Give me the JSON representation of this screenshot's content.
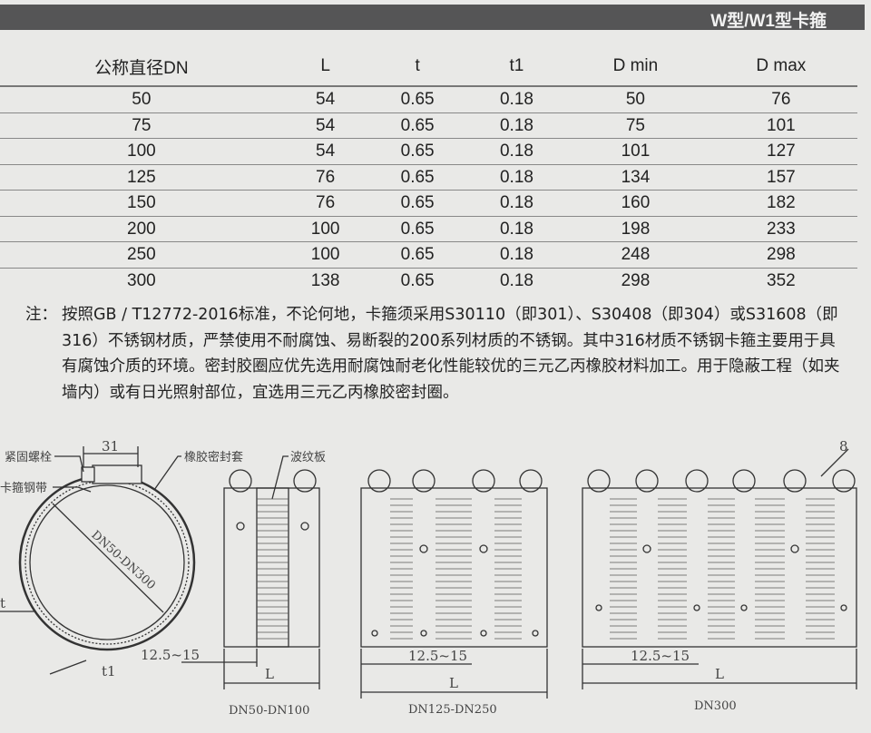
{
  "header": {
    "title": "W型/W1型卡箍"
  },
  "table": {
    "columns": [
      "公称直径DN",
      "L",
      "t",
      "t1",
      "D min",
      "D max"
    ],
    "rows": [
      [
        "50",
        "54",
        "0.65",
        "0.18",
        "50",
        "76"
      ],
      [
        "75",
        "54",
        "0.65",
        "0.18",
        "75",
        "101"
      ],
      [
        "100",
        "54",
        "0.65",
        "0.18",
        "101",
        "127"
      ],
      [
        "125",
        "76",
        "0.65",
        "0.18",
        "134",
        "157"
      ],
      [
        "150",
        "76",
        "0.65",
        "0.18",
        "160",
        "182"
      ],
      [
        "200",
        "100",
        "0.65",
        "0.18",
        "198",
        "233"
      ],
      [
        "250",
        "100",
        "0.65",
        "0.18",
        "248",
        "298"
      ],
      [
        "300",
        "138",
        "0.65",
        "0.18",
        "298",
        "352"
      ]
    ]
  },
  "note": {
    "label": "注：",
    "text": "按照GB / T12772-2016标准，不论何地，卡箍须采用S30110（即301）、S30408（即304）或S31608（即316）不锈钢材质，严禁使用不耐腐蚀、易断裂的200系列材质的不锈钢。其中316材质不锈钢卡箍主要用于具有腐蚀介质的环境。密封胶圈应优先选用耐腐蚀耐老化性能较优的三元乙丙橡胶材料加工。用于隐蔽工程（如夹墙内）或有日光照射部位，宜选用三元乙丙橡胶密封圈。"
  },
  "diagram": {
    "labels": {
      "bolt": "紧固螺栓",
      "band": "卡箍钢带",
      "width": "31",
      "rubber": "橡胶密封套",
      "corrugated": "波纹板",
      "range": "DN50-DN300",
      "t": "t",
      "t1": "t1",
      "gap": "12.5~15",
      "gap2": "12.5~15",
      "gap3": "12.5~15",
      "L": "L",
      "L2": "L",
      "L3": "L",
      "eight": "8"
    },
    "captions": [
      "DN50-DN100",
      "DN125-DN250",
      "DN300"
    ]
  }
}
